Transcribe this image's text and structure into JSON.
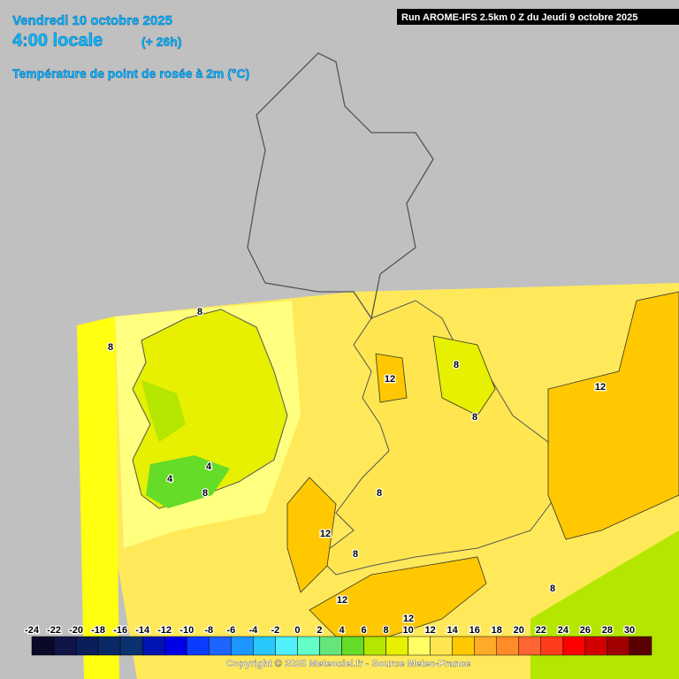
{
  "header": {
    "date": "Vendredi 10 octobre 2025",
    "time": "4:00 locale",
    "offset": "(+ 26h)",
    "parameter": "Température de point de rosée à 2m (°C)",
    "run": "Run AROME-IFS 2.5km 0 Z du Jeudi 9 octobre 2025"
  },
  "map": {
    "contour_labels": [
      8,
      8,
      12,
      8,
      12,
      8,
      4,
      4,
      8,
      8,
      12,
      8,
      12,
      8,
      12
    ]
  },
  "legend": {
    "labels": [
      -24,
      -22,
      -20,
      -18,
      -16,
      -14,
      -12,
      -10,
      -8,
      -6,
      -4,
      -2,
      0,
      2,
      4,
      6,
      8,
      10,
      12,
      14,
      16,
      18,
      20,
      22,
      24,
      26,
      28,
      30
    ],
    "colors": [
      "#0a0a28",
      "#101446",
      "#0a1e5a",
      "#0a2864",
      "#0a326e",
      "#0014b4",
      "#0000e6",
      "#0a3cff",
      "#1e64ff",
      "#1e96ff",
      "#28c8ff",
      "#50f0ff",
      "#64ffc8",
      "#64e67d",
      "#64dc28",
      "#b4e600",
      "#e6f000",
      "#ffff64",
      "#ffe650",
      "#ffc800",
      "#ffaa28",
      "#ff8c28",
      "#ff6432",
      "#ff3c1e",
      "#ff0000",
      "#d20000",
      "#a00000",
      "#5a0000"
    ]
  },
  "footer": {
    "copyright": "Copyright © 2025 Meteociel.fr - Source Meteo-France"
  }
}
